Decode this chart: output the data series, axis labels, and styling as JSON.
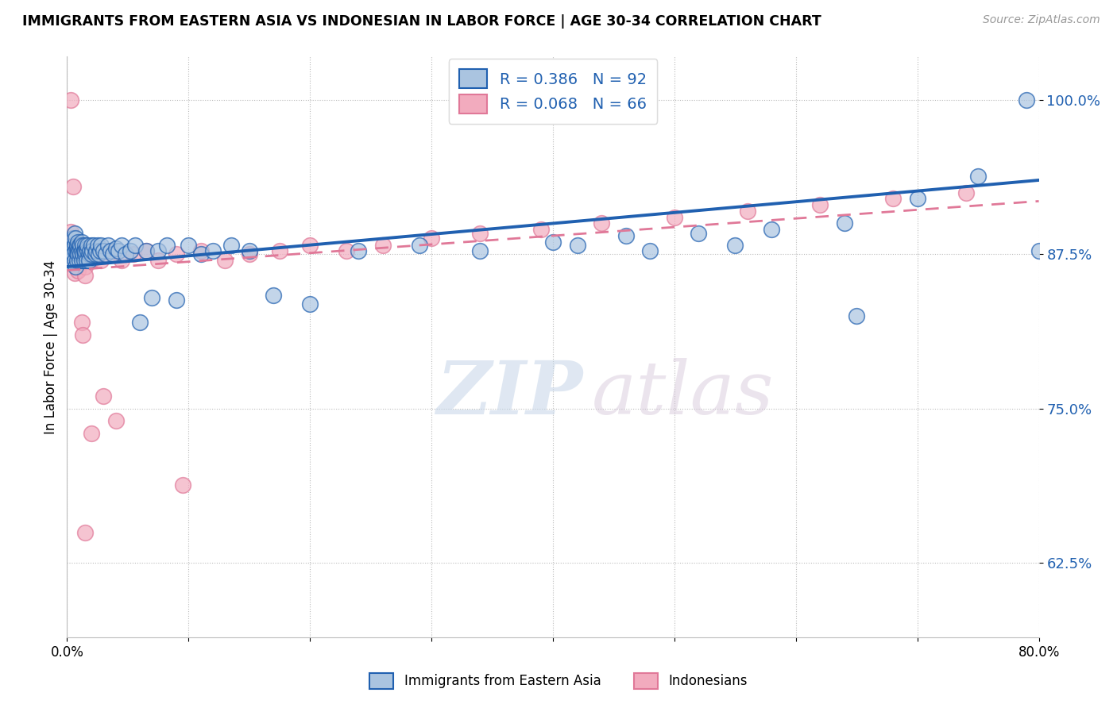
{
  "title": "IMMIGRANTS FROM EASTERN ASIA VS INDONESIAN IN LABOR FORCE | AGE 30-34 CORRELATION CHART",
  "source": "Source: ZipAtlas.com",
  "ylabel": "In Labor Force | Age 30-34",
  "xlim": [
    0.0,
    0.8
  ],
  "ylim": [
    0.565,
    1.035
  ],
  "yticks": [
    0.625,
    0.75,
    0.875,
    1.0
  ],
  "ytick_labels": [
    "62.5%",
    "75.0%",
    "87.5%",
    "100.0%"
  ],
  "xticks": [
    0.0,
    0.1,
    0.2,
    0.3,
    0.4,
    0.5,
    0.6,
    0.7,
    0.8
  ],
  "xtick_labels": [
    "0.0%",
    "",
    "",
    "",
    "",
    "",
    "",
    "",
    "80.0%"
  ],
  "blue_R": 0.386,
  "blue_N": 92,
  "pink_R": 0.068,
  "pink_N": 66,
  "blue_color": "#aac4e0",
  "pink_color": "#f2abbe",
  "blue_line_color": "#2060b0",
  "pink_line_color": "#e07898",
  "legend_label_blue": "Immigrants from Eastern Asia",
  "legend_label_pink": "Indonesians",
  "watermark_zip": "ZIP",
  "watermark_atlas": "atlas",
  "blue_scatter_x": [
    0.002,
    0.003,
    0.004,
    0.004,
    0.005,
    0.005,
    0.005,
    0.006,
    0.006,
    0.006,
    0.007,
    0.007,
    0.007,
    0.008,
    0.008,
    0.008,
    0.008,
    0.009,
    0.009,
    0.009,
    0.01,
    0.01,
    0.01,
    0.011,
    0.011,
    0.012,
    0.012,
    0.012,
    0.013,
    0.013,
    0.014,
    0.014,
    0.015,
    0.015,
    0.015,
    0.016,
    0.016,
    0.017,
    0.017,
    0.018,
    0.018,
    0.019,
    0.02,
    0.02,
    0.021,
    0.022,
    0.023,
    0.024,
    0.025,
    0.026,
    0.027,
    0.028,
    0.03,
    0.032,
    0.034,
    0.036,
    0.038,
    0.04,
    0.042,
    0.045,
    0.048,
    0.052,
    0.056,
    0.06,
    0.065,
    0.07,
    0.075,
    0.082,
    0.09,
    0.1,
    0.11,
    0.12,
    0.135,
    0.15,
    0.17,
    0.2,
    0.24,
    0.29,
    0.34,
    0.4,
    0.46,
    0.52,
    0.58,
    0.64,
    0.7,
    0.75,
    0.79,
    0.8,
    0.65,
    0.55,
    0.48,
    0.42
  ],
  "blue_scatter_y": [
    0.875,
    0.878,
    0.882,
    0.87,
    0.88,
    0.888,
    0.875,
    0.883,
    0.87,
    0.892,
    0.878,
    0.865,
    0.888,
    0.88,
    0.875,
    0.882,
    0.87,
    0.878,
    0.885,
    0.875,
    0.882,
    0.87,
    0.878,
    0.882,
    0.875,
    0.878,
    0.87,
    0.885,
    0.875,
    0.882,
    0.878,
    0.87,
    0.882,
    0.875,
    0.878,
    0.88,
    0.87,
    0.878,
    0.882,
    0.875,
    0.87,
    0.878,
    0.882,
    0.875,
    0.878,
    0.882,
    0.875,
    0.878,
    0.882,
    0.875,
    0.878,
    0.882,
    0.878,
    0.875,
    0.882,
    0.878,
    0.875,
    0.88,
    0.878,
    0.882,
    0.875,
    0.878,
    0.882,
    0.82,
    0.878,
    0.84,
    0.878,
    0.882,
    0.838,
    0.882,
    0.875,
    0.878,
    0.882,
    0.878,
    0.842,
    0.835,
    0.878,
    0.882,
    0.878,
    0.885,
    0.89,
    0.892,
    0.895,
    0.9,
    0.92,
    0.938,
    1.0,
    0.878,
    0.825,
    0.882,
    0.878,
    0.882
  ],
  "pink_scatter_x": [
    0.002,
    0.003,
    0.003,
    0.004,
    0.004,
    0.005,
    0.005,
    0.005,
    0.006,
    0.006,
    0.006,
    0.007,
    0.007,
    0.007,
    0.008,
    0.008,
    0.008,
    0.009,
    0.009,
    0.01,
    0.01,
    0.01,
    0.011,
    0.011,
    0.012,
    0.012,
    0.013,
    0.013,
    0.014,
    0.015,
    0.015,
    0.016,
    0.017,
    0.018,
    0.02,
    0.022,
    0.025,
    0.028,
    0.032,
    0.038,
    0.045,
    0.055,
    0.065,
    0.075,
    0.09,
    0.11,
    0.13,
    0.15,
    0.175,
    0.2,
    0.23,
    0.26,
    0.3,
    0.34,
    0.39,
    0.44,
    0.5,
    0.56,
    0.62,
    0.68,
    0.74,
    0.095,
    0.04,
    0.03,
    0.02,
    0.015
  ],
  "pink_scatter_y": [
    0.878,
    1.0,
    0.893,
    0.878,
    0.882,
    0.875,
    0.878,
    0.93,
    0.878,
    0.88,
    0.86,
    0.878,
    0.875,
    0.882,
    0.875,
    0.878,
    0.87,
    0.878,
    0.862,
    0.878,
    0.875,
    0.87,
    0.875,
    0.878,
    0.82,
    0.87,
    0.81,
    0.878,
    0.875,
    0.865,
    0.858,
    0.87,
    0.878,
    0.875,
    0.87,
    0.878,
    0.875,
    0.87,
    0.878,
    0.875,
    0.87,
    0.875,
    0.878,
    0.87,
    0.875,
    0.878,
    0.87,
    0.875,
    0.878,
    0.882,
    0.878,
    0.882,
    0.888,
    0.892,
    0.895,
    0.9,
    0.905,
    0.91,
    0.915,
    0.92,
    0.925,
    0.688,
    0.74,
    0.76,
    0.73,
    0.65
  ]
}
